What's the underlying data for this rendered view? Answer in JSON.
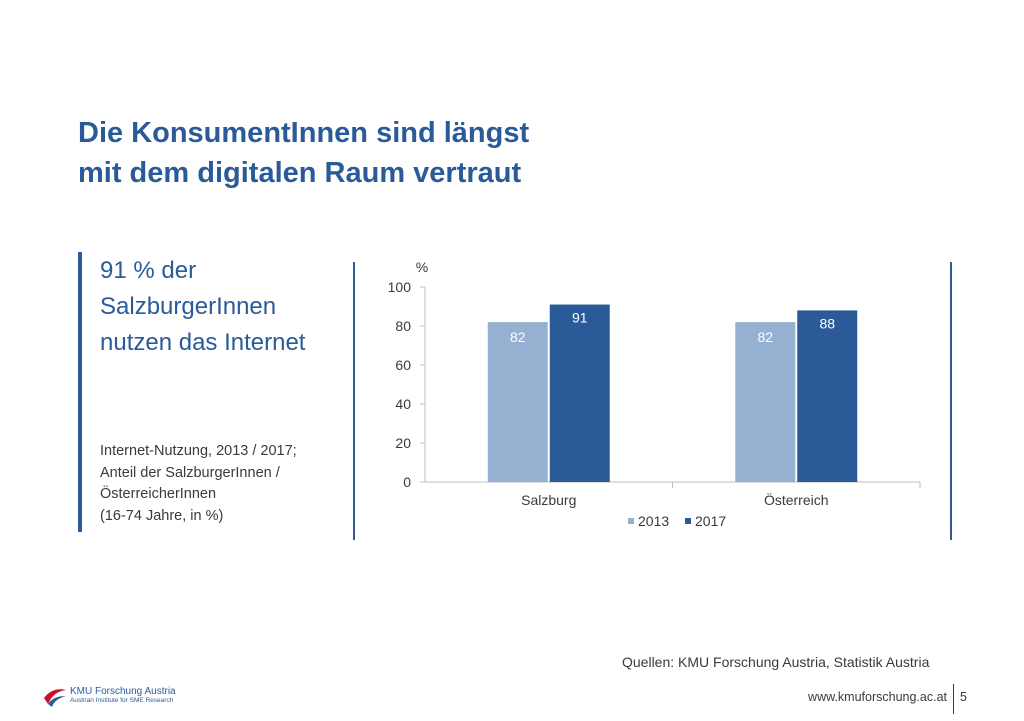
{
  "slide": {
    "title_line1": "Die KonsumentInnen sind längst",
    "title_line2": "mit dem digitalen Raum vertraut",
    "headline": "91 % der SalzburgerInnen nutzen das Internet",
    "description": [
      "Internet-Nutzung, 2013 / 2017;",
      "Anteil der SalzburgerInnen /",
      "ÖsterreicherInnen",
      "(16-74 Jahre, in %)"
    ],
    "source": "Quellen: KMU Forschung Austria, Statistik Austria",
    "footer_url": "www.kmuforschung.ac.at",
    "page_number": "5",
    "logo_name": "KMU Forschung Austria",
    "logo_subtitle": "Austrian Institute for SME Research",
    "accent_color": "#2a5b98"
  },
  "chart_data": {
    "type": "bar",
    "ylabel": "%",
    "ylim": [
      0,
      100
    ],
    "yticks": [
      0,
      20,
      40,
      60,
      80,
      100
    ],
    "categories": [
      "Salzburg",
      "Österreich"
    ],
    "series": [
      {
        "name": "2013",
        "values": [
          82,
          82
        ],
        "color": "#95b0d0"
      },
      {
        "name": "2017",
        "values": [
          91,
          88
        ],
        "color": "#2a5b98"
      }
    ],
    "data_labels": true,
    "legend_position": "bottom",
    "grid": false
  }
}
